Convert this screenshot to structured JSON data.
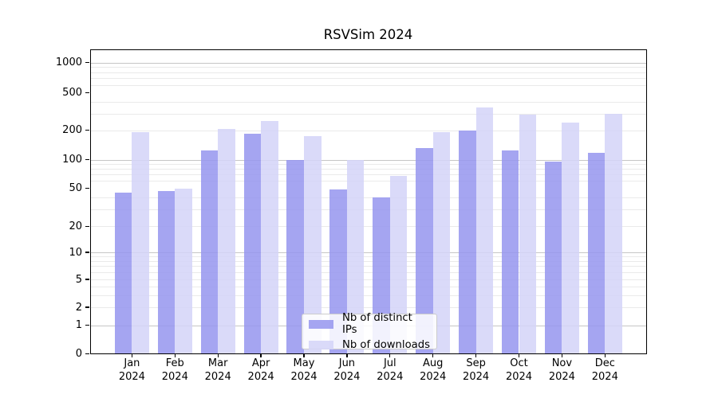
{
  "title": "RSVSim 2024",
  "chart_data": {
    "type": "bar",
    "title": "RSVSim 2024",
    "categories": [
      "Jan",
      "Feb",
      "Mar",
      "Apr",
      "May",
      "Jun",
      "Jul",
      "Aug",
      "Sep",
      "Oct",
      "Nov",
      "Dec"
    ],
    "category_year": "2024",
    "series": [
      {
        "name": "Nb of distinct IPs",
        "color": "#9595ee",
        "values": [
          45,
          47,
          125,
          185,
          100,
          49,
          40,
          130,
          200,
          125,
          95,
          118
        ]
      },
      {
        "name": "Nb of downloads",
        "color": "#d4d4f8",
        "values": [
          190,
          50,
          205,
          250,
          175,
          100,
          68,
          190,
          350,
          295,
          240,
          300
        ]
      }
    ],
    "y_ticks": [
      0,
      1,
      2,
      5,
      10,
      20,
      50,
      100,
      200,
      500,
      1000
    ],
    "y_major_gridlines": [
      1,
      10,
      100,
      1000
    ],
    "y_minor_gridlines": [
      2,
      3,
      4,
      5,
      6,
      7,
      8,
      9,
      20,
      30,
      40,
      60,
      70,
      80,
      90,
      200,
      300,
      400,
      600,
      700,
      800,
      900
    ],
    "yscale": "asinh",
    "ylim": [
      0,
      1350
    ],
    "xlabel": "",
    "ylabel": "",
    "grid": true,
    "legend_position": "lower center",
    "colors": {
      "bar_alpha": "0.85",
      "grid_major": "#c6c6c6",
      "grid_minor": "#eaeaea",
      "axis": "#000000",
      "background": "#ffffff"
    }
  }
}
